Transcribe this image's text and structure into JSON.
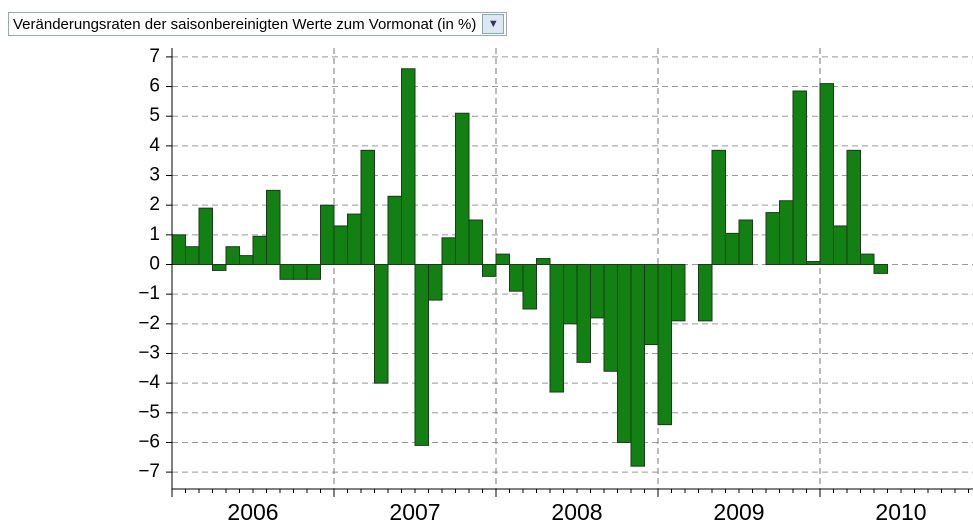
{
  "chart_data": {
    "type": "bar",
    "title": "Veränderungsraten der saisonbereinigten Werte zum Vormonat (in %)",
    "x_labels": [
      "2006",
      "2007",
      "2008",
      "2009",
      "2010"
    ],
    "categories": [
      null,
      null,
      null,
      null,
      null,
      null,
      null,
      null,
      null,
      null,
      null,
      null,
      null,
      null,
      null,
      null,
      null,
      null,
      null,
      null,
      null,
      null,
      null,
      null,
      null,
      null,
      null,
      null,
      null,
      null,
      null,
      null,
      null,
      null,
      null,
      null,
      null,
      null,
      null,
      null,
      null,
      null,
      null,
      null,
      null,
      null,
      null,
      null,
      null,
      null,
      null,
      null,
      null
    ],
    "values": [
      1.0,
      0.6,
      1.9,
      -0.2,
      0.6,
      0.3,
      0.95,
      2.5,
      -0.5,
      -0.5,
      -0.5,
      2.0,
      1.3,
      1.7,
      3.85,
      -4.0,
      2.3,
      6.6,
      -6.1,
      -1.2,
      0.9,
      5.1,
      1.5,
      -0.4,
      0.35,
      -0.9,
      -1.5,
      0.2,
      -4.3,
      -2.0,
      -3.3,
      -1.8,
      -3.6,
      -6.0,
      -6.8,
      -2.7,
      -5.4,
      -1.9,
      0,
      -1.9,
      3.85,
      1.05,
      1.5,
      0,
      1.75,
      2.15,
      5.85,
      0.1,
      6.1,
      1.3,
      3.85,
      0.35,
      -0.3
    ],
    "color": "#138013",
    "ylim": [
      -7.3,
      7.3
    ],
    "yticks": [
      {
        "value": -7,
        "label": "−7"
      },
      {
        "value": -6,
        "label": "−6"
      },
      {
        "value": -5,
        "label": "−5"
      },
      {
        "value": -4,
        "label": "−4"
      },
      {
        "value": -3,
        "label": "−3"
      },
      {
        "value": -2,
        "label": "−2"
      },
      {
        "value": -1,
        "label": "−1"
      },
      0,
      1,
      2,
      3,
      4,
      5,
      6,
      7
    ],
    "grid": true
  }
}
